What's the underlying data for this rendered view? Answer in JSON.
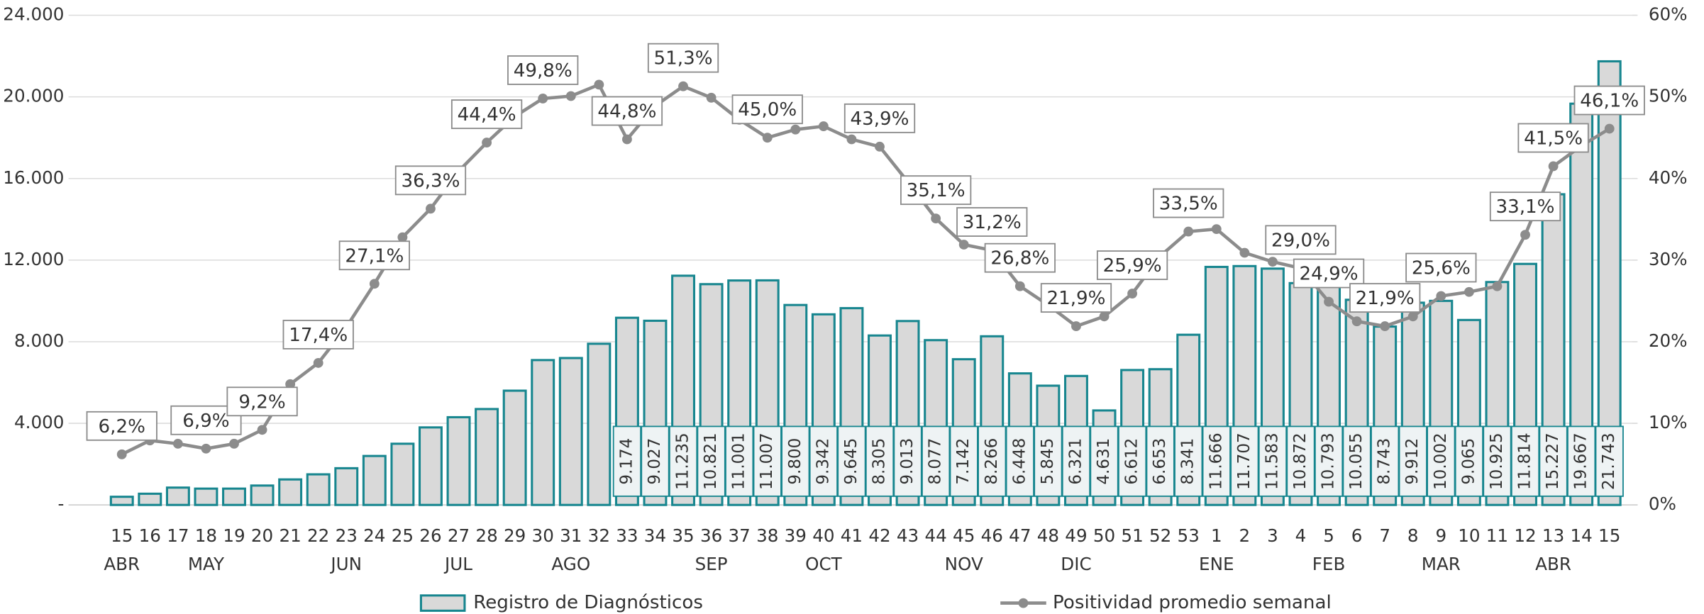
{
  "chart_data": {
    "type": "combo",
    "categories": [
      "15",
      "16",
      "17",
      "18",
      "19",
      "20",
      "21",
      "22",
      "23",
      "24",
      "25",
      "26",
      "27",
      "28",
      "29",
      "30",
      "31",
      "32",
      "33",
      "34",
      "35",
      "36",
      "37",
      "38",
      "39",
      "40",
      "41",
      "42",
      "43",
      "44",
      "45",
      "46",
      "47",
      "48",
      "49",
      "50",
      "51",
      "52",
      "53",
      "1",
      "2",
      "3",
      "4",
      "5",
      "6",
      "7",
      "8",
      "9",
      "10",
      "11",
      "12",
      "13",
      "14",
      "15"
    ],
    "month_labels": [
      "ABR",
      null,
      null,
      "MAY",
      null,
      null,
      null,
      null,
      "JUN",
      null,
      null,
      null,
      "JUL",
      null,
      null,
      null,
      "AGO",
      null,
      null,
      null,
      null,
      "SEP",
      null,
      null,
      null,
      "OCT",
      null,
      null,
      null,
      null,
      "NOV",
      null,
      null,
      null,
      "DIC",
      null,
      null,
      null,
      null,
      "ENE",
      null,
      null,
      null,
      "FEB",
      null,
      null,
      null,
      "MAR",
      null,
      null,
      null,
      "ABR",
      null,
      null
    ],
    "ylim": [
      0,
      24000
    ],
    "yticks": [
      {
        "value": 0,
        "label": "-"
      },
      {
        "value": 4000,
        "label": "4.000"
      },
      {
        "value": 8000,
        "label": "8.000"
      },
      {
        "value": 12000,
        "label": "12.000"
      },
      {
        "value": 16000,
        "label": "16.000"
      },
      {
        "value": 20000,
        "label": "20.000"
      },
      {
        "value": 24000,
        "label": "24.000"
      }
    ],
    "y2lim": [
      0,
      60
    ],
    "y2ticks": [
      {
        "value": 0,
        "label": "0%"
      },
      {
        "value": 10,
        "label": "10%"
      },
      {
        "value": 20,
        "label": "20%"
      },
      {
        "value": 30,
        "label": "30%"
      },
      {
        "value": 40,
        "label": "40%"
      },
      {
        "value": 50,
        "label": "50%"
      },
      {
        "value": 60,
        "label": "60%"
      }
    ],
    "grid": true,
    "legend": "bottom",
    "series": [
      {
        "name": "Registro de Diagnósticos",
        "type": "bar",
        "color": "#d9d9d9",
        "edge_color": "#17868f",
        "values": [
          400,
          550,
          850,
          800,
          800,
          950,
          1250,
          1500,
          1800,
          2400,
          3000,
          3800,
          4300,
          4700,
          5600,
          7100,
          7200,
          7900,
          9174,
          9027,
          11235,
          10821,
          11001,
          11007,
          9800,
          9342,
          9645,
          8305,
          9013,
          8077,
          7142,
          8266,
          6448,
          5845,
          6321,
          4631,
          6612,
          6653,
          8341,
          11666,
          11707,
          11583,
          10872,
          10793,
          10055,
          8743,
          9912,
          10002,
          9065,
          10925,
          11814,
          15227,
          19667,
          21743
        ],
        "value_labels": [
          null,
          null,
          null,
          null,
          null,
          null,
          null,
          null,
          null,
          null,
          null,
          null,
          null,
          null,
          null,
          null,
          null,
          null,
          "9.174",
          "9.027",
          "11.235",
          "10.821",
          "11.001",
          "11.007",
          "9.800",
          "9.342",
          "9.645",
          "8.305",
          "9.013",
          "8.077",
          "7.142",
          "8.266",
          "6.448",
          "5.845",
          "6.321",
          "4.631",
          "6.612",
          "6.653",
          "8.341",
          "11.666",
          "11.707",
          "11.583",
          "10.872",
          "10.793",
          "10.055",
          "8.743",
          "9.912",
          "10.002",
          "9.065",
          "10.925",
          "11.814",
          "15.227",
          "19.667",
          "21.743"
        ]
      },
      {
        "name": "Positividad promedio semanal",
        "type": "line",
        "axis": "y2",
        "color": "#8c8c8c",
        "values": [
          6.2,
          7.9,
          7.5,
          6.9,
          7.5,
          9.2,
          14.8,
          17.4,
          21.8,
          27.1,
          32.8,
          36.3,
          40.9,
          44.4,
          47.6,
          49.8,
          50.1,
          51.5,
          44.8,
          48.9,
          51.3,
          49.9,
          47.2,
          45.0,
          46.0,
          46.4,
          44.8,
          43.9,
          39.6,
          35.1,
          31.9,
          31.2,
          26.8,
          24.5,
          21.9,
          23.1,
          25.9,
          30.5,
          33.5,
          33.8,
          30.9,
          29.8,
          29.0,
          24.9,
          22.5,
          21.9,
          23.1,
          25.6,
          26.1,
          26.8,
          33.1,
          41.5,
          44.0,
          46.1
        ],
        "value_labels": [
          "6,2%",
          null,
          null,
          "6,9%",
          null,
          "9,2%",
          null,
          "17,4%",
          null,
          "27,1%",
          null,
          "36,3%",
          null,
          "44,4%",
          null,
          "49,8%",
          null,
          null,
          "44,8%",
          null,
          "51,3%",
          null,
          null,
          "45,0%",
          null,
          null,
          null,
          "43,9%",
          null,
          "35,1%",
          null,
          "31,2%",
          "26,8%",
          null,
          "21,9%",
          null,
          "25,9%",
          null,
          "33,5%",
          null,
          null,
          null,
          "29,0%",
          "24,9%",
          null,
          "21,9%",
          null,
          "25,6%",
          null,
          null,
          "33,1%",
          "41,5%",
          null,
          "46,1%"
        ]
      }
    ]
  }
}
